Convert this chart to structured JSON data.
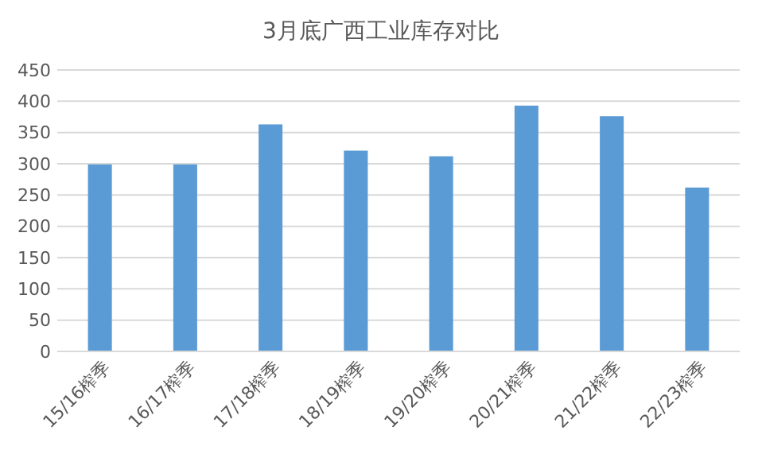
{
  "chart_data": {
    "type": "bar",
    "title": "3月底广西工业库存对比",
    "categories": [
      "15/16榨季",
      "16/17榨季",
      "17/18榨季",
      "18/19榨季",
      "19/20榨季",
      "20/21榨季",
      "21/22榨季",
      "22/23榨季"
    ],
    "values": [
      299,
      299,
      363,
      321,
      312,
      393,
      376,
      262
    ],
    "color": "#5b9bd5",
    "ylim": [
      0,
      450
    ],
    "yticks": [
      0,
      50,
      100,
      150,
      200,
      250,
      300,
      350,
      400,
      450
    ],
    "grid": "y"
  }
}
